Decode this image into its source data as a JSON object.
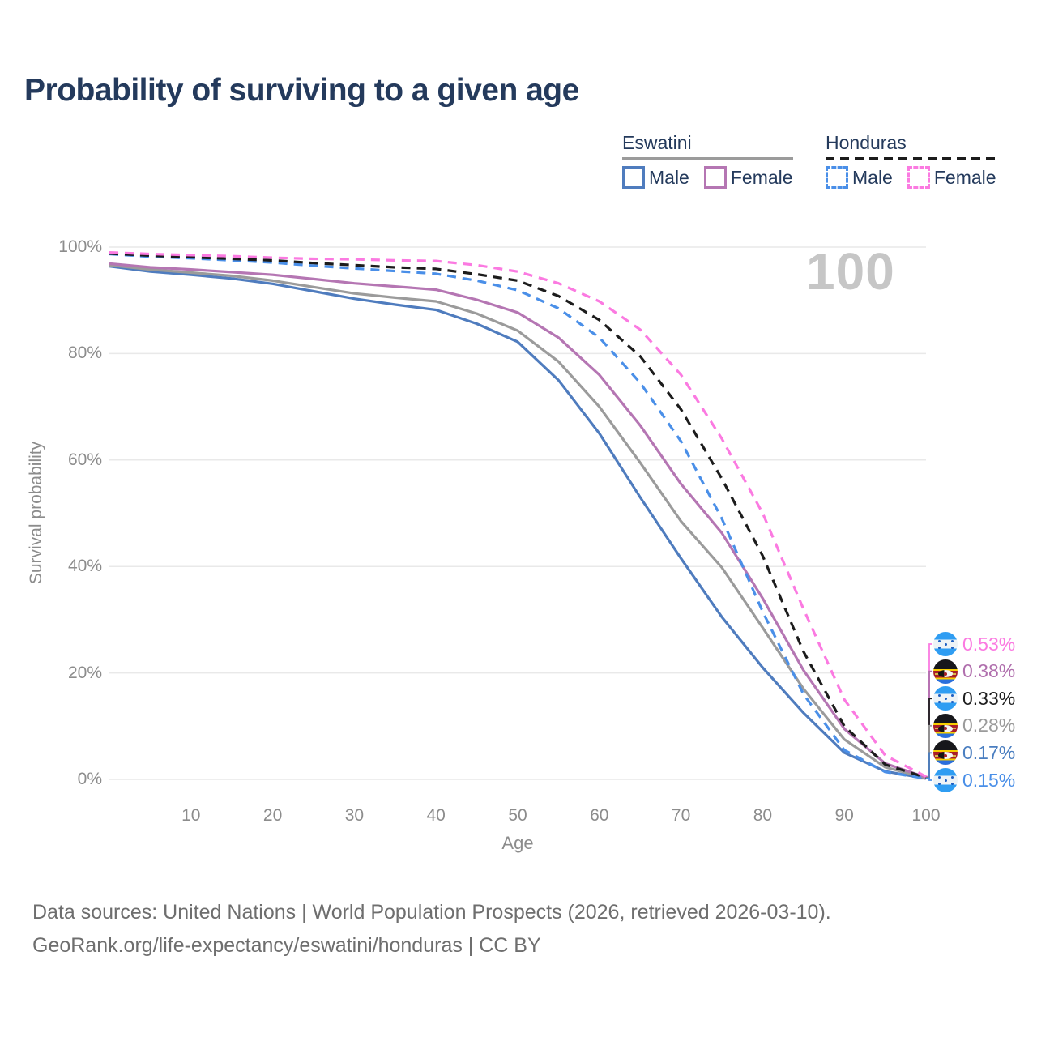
{
  "title": "Probability of surviving to a given age",
  "watermark_age": "100",
  "legend": {
    "groups": [
      {
        "country": "Eswatini",
        "line_style": "solid",
        "underline_color": "#9b9b9b",
        "items": [
          {
            "label": "Male",
            "color": "#4f7cbe",
            "dashed": false
          },
          {
            "label": "Female",
            "color": "#b576b3",
            "dashed": false
          }
        ]
      },
      {
        "country": "Honduras",
        "line_style": "dashed",
        "underline_color": "#1c1c1c",
        "items": [
          {
            "label": "Male",
            "color": "#4a8fe8",
            "dashed": true
          },
          {
            "label": "Female",
            "color": "#fb7ae1",
            "dashed": true
          }
        ]
      }
    ]
  },
  "chart_data": {
    "type": "line",
    "title": "Probability of surviving to a given age",
    "xlabel": "Age",
    "ylabel": "Survival probability",
    "xlim": [
      0,
      100
    ],
    "ylim": [
      0,
      100
    ],
    "grid": "horizontal-only",
    "gridline_color": "#e9e9e9",
    "x_ticks": [
      10,
      20,
      30,
      40,
      50,
      60,
      70,
      80,
      90,
      100
    ],
    "y_ticks": [
      {
        "value": 0,
        "label": "0%"
      },
      {
        "value": 20,
        "label": "20%"
      },
      {
        "value": 40,
        "label": "40%"
      },
      {
        "value": 60,
        "label": "60%"
      },
      {
        "value": 80,
        "label": "80%"
      },
      {
        "value": 100,
        "label": "100%"
      }
    ],
    "x": [
      0,
      5,
      10,
      15,
      20,
      25,
      30,
      35,
      40,
      45,
      50,
      55,
      60,
      65,
      70,
      75,
      80,
      85,
      90,
      95,
      100
    ],
    "series": [
      {
        "name": "Eswatini Male",
        "country": "Eswatini",
        "sex": "Male",
        "color": "#4f7cbe",
        "dashed": false,
        "end_label": "0.17%",
        "values": [
          96.4,
          95.4,
          94.8,
          94.1,
          93.1,
          91.7,
          90.3,
          89.2,
          88.2,
          85.6,
          82.2,
          75.0,
          65.0,
          53.0,
          41.5,
          30.5,
          21.0,
          12.5,
          5.0,
          1.5,
          0.17
        ]
      },
      {
        "name": "Eswatini Both sexes",
        "country": "Eswatini",
        "sex": "Both",
        "color": "#9b9b9b",
        "dashed": false,
        "end_label": "0.28%",
        "values": [
          96.6,
          95.8,
          95.2,
          94.6,
          93.7,
          92.5,
          91.3,
          90.5,
          89.8,
          87.5,
          84.3,
          78.5,
          70.0,
          59.5,
          48.5,
          39.8,
          28.5,
          17.0,
          7.5,
          2.3,
          0.28
        ]
      },
      {
        "name": "Eswatini Female",
        "country": "Eswatini",
        "sex": "Female",
        "color": "#b576b3",
        "dashed": false,
        "end_label": "0.38%",
        "values": [
          96.9,
          96.2,
          95.8,
          95.3,
          94.8,
          94.0,
          93.2,
          92.6,
          92.0,
          90.1,
          87.7,
          83.0,
          76.0,
          66.5,
          55.5,
          46.3,
          34.0,
          20.5,
          9.5,
          3.0,
          0.38
        ]
      },
      {
        "name": "Honduras Male",
        "country": "Honduras",
        "sex": "Male",
        "color": "#4a8fe8",
        "dashed": true,
        "end_label": "0.15%",
        "values": [
          98.7,
          98.2,
          97.9,
          97.5,
          97.1,
          96.5,
          96.0,
          95.5,
          95.0,
          93.7,
          91.9,
          88.5,
          83.0,
          74.5,
          63.5,
          49.0,
          31.5,
          16.0,
          5.5,
          1.4,
          0.15
        ]
      },
      {
        "name": "Honduras Both sexes",
        "country": "Honduras",
        "sex": "Both",
        "color": "#1c1c1c",
        "dashed": true,
        "end_label": "0.33%",
        "values": [
          98.8,
          98.4,
          98.1,
          97.8,
          97.5,
          97.0,
          96.6,
          96.2,
          95.9,
          94.9,
          93.7,
          90.8,
          86.3,
          79.5,
          69.5,
          56.5,
          42.0,
          24.0,
          10.0,
          2.8,
          0.33
        ]
      },
      {
        "name": "Honduras Female",
        "country": "Honduras",
        "sex": "Female",
        "color": "#fb7ae1",
        "dashed": true,
        "end_label": "0.53%",
        "values": [
          99.0,
          98.7,
          98.5,
          98.3,
          98.0,
          97.8,
          97.7,
          97.5,
          97.4,
          96.6,
          95.4,
          93.2,
          89.8,
          84.5,
          76.0,
          64.0,
          50.0,
          32.0,
          15.0,
          4.5,
          0.53
        ]
      }
    ]
  },
  "end_labels": [
    {
      "value": "0.53%",
      "color": "#fb7ae1",
      "flag": "honduras",
      "series": "Honduras Female"
    },
    {
      "value": "0.38%",
      "color": "#b06fad",
      "flag": "eswatini",
      "series": "Eswatini Female"
    },
    {
      "value": "0.33%",
      "color": "#1f1f1f",
      "flag": "honduras",
      "series": "Honduras Both sexes"
    },
    {
      "value": "0.28%",
      "color": "#9b9b9b",
      "flag": "eswatini",
      "series": "Eswatini Both sexes"
    },
    {
      "value": "0.17%",
      "color": "#4a7ec0",
      "flag": "eswatini",
      "series": "Eswatini Male"
    },
    {
      "value": "0.15%",
      "color": "#4a8fe8",
      "flag": "honduras",
      "series": "Honduras Male"
    }
  ],
  "footer": {
    "line1": "Data sources: United Nations | World Population Prospects (2026, retrieved 2026-03-10).",
    "line2": "GeoRank.org/life-expectancy/eswatini/honduras | CC BY"
  }
}
